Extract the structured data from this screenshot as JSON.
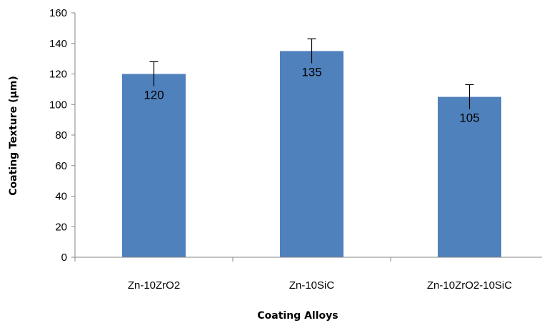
{
  "chart_data": {
    "type": "bar",
    "title": "",
    "xlabel": "Coating Alloys",
    "ylabel": "Coating Texture (µm)",
    "categories": [
      "Zn-10ZrO2",
      "Zn-10SiC",
      "Zn-10ZrO2-10SiC"
    ],
    "values": [
      120,
      135,
      105
    ],
    "error_upper": [
      128,
      143,
      113
    ],
    "error_lower": [
      112,
      127,
      97
    ],
    "data_labels": [
      "120",
      "135",
      "105"
    ],
    "ylim": [
      0,
      160
    ],
    "yticks": [
      0,
      20,
      40,
      60,
      80,
      100,
      120,
      140,
      160
    ],
    "ytick_labels": [
      "0",
      "20",
      "40",
      "60",
      "80",
      "100",
      "120",
      "140",
      "160"
    ],
    "grid": false,
    "legend": "none",
    "bar_color": "#4f81bd"
  }
}
